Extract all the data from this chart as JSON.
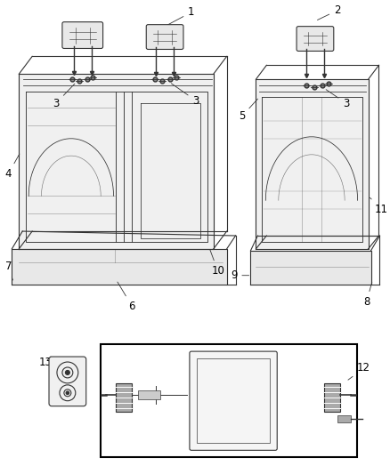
{
  "background_color": "#ffffff",
  "fig_width": 4.38,
  "fig_height": 5.33,
  "dpi": 100,
  "line_color": "#333333",
  "label_fontsize": 8.5,
  "arrow_lw": 0.6
}
